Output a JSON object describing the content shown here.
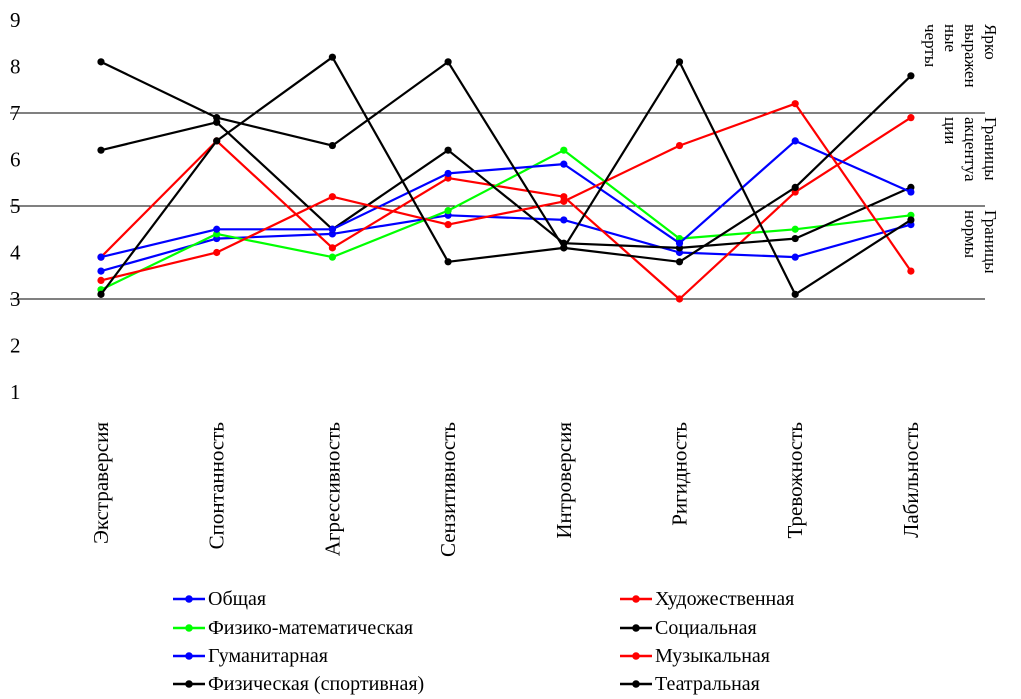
{
  "chart_data": {
    "type": "line",
    "categories": [
      "Экстраверсия",
      "Спонтанность",
      "Агрессивность",
      "Сензитивность",
      "Интроверсия",
      "Ригидность",
      "Тревожность",
      "Лабильность"
    ],
    "ylim": [
      1,
      9
    ],
    "yticks": [
      "1",
      "2",
      "3",
      "4",
      "5",
      "6",
      "7",
      "8",
      "9"
    ],
    "reference_lines": [
      3,
      5,
      7
    ],
    "band_labels": [
      {
        "text": "Ярко выраженные черты",
        "lines": [
          "Ярко",
          "выражен",
          "ные",
          "черты"
        ],
        "from": 7,
        "to": 9
      },
      {
        "text": "Границы акцентуации",
        "lines": [
          "Границы",
          "акцентуа",
          "ции"
        ],
        "from": 5,
        "to": 7
      },
      {
        "text": "Границы нормы",
        "lines": [
          "Границы",
          "нормы"
        ],
        "from": 3,
        "to": 5
      }
    ],
    "legend_position": "bottom",
    "grid": false,
    "series": [
      {
        "name": "Общая",
        "color": "#0000ff",
        "values": [
          3.6,
          4.3,
          4.4,
          4.8,
          4.7,
          4.0,
          3.9,
          4.6
        ]
      },
      {
        "name": "Художественная",
        "color": "#ff0000",
        "values": [
          3.9,
          6.4,
          4.1,
          5.6,
          5.2,
          3.0,
          5.3,
          6.9
        ]
      },
      {
        "name": "Физико-математическая",
        "color": "#00ff00",
        "values": [
          3.2,
          4.4,
          3.9,
          4.9,
          6.2,
          4.3,
          4.5,
          4.8
        ]
      },
      {
        "name": "Социальная",
        "color": "#000000",
        "values": [
          6.2,
          6.8,
          4.5,
          6.2,
          4.2,
          4.1,
          4.3,
          5.4
        ]
      },
      {
        "name": "Гуманитарная",
        "color": "#0000ff",
        "values": [
          3.9,
          4.5,
          4.5,
          5.7,
          5.9,
          4.2,
          6.4,
          5.3
        ]
      },
      {
        "name": "Музыкальная",
        "color": "#ff0000",
        "values": [
          3.4,
          4.0,
          5.2,
          4.6,
          5.1,
          6.3,
          7.2,
          3.6
        ]
      },
      {
        "name": "Физическая (спортивная)",
        "color": "#000000",
        "values": [
          3.1,
          6.4,
          8.2,
          3.8,
          4.1,
          8.1,
          3.1,
          4.7
        ]
      },
      {
        "name": "Театральная",
        "color": "#000000",
        "values": [
          8.1,
          6.9,
          6.3,
          8.1,
          4.1,
          3.8,
          5.4,
          7.8
        ]
      }
    ]
  }
}
